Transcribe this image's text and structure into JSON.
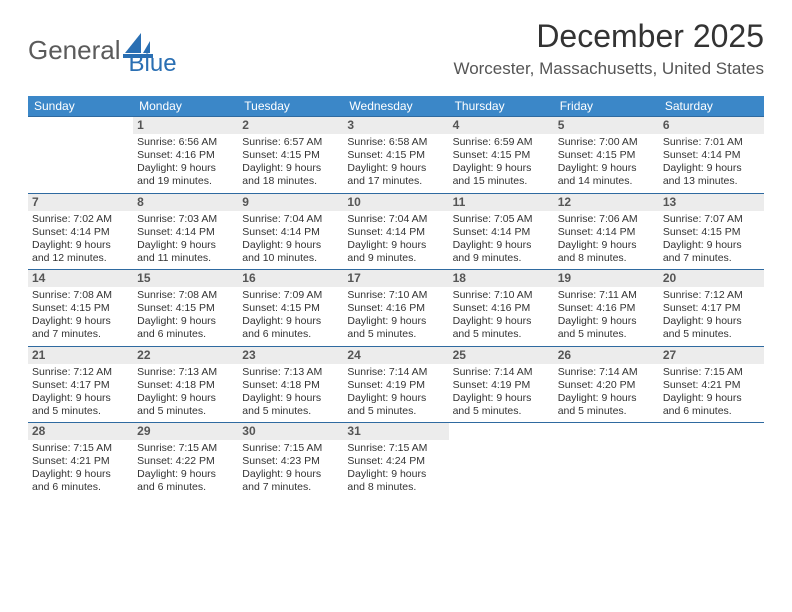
{
  "colors": {
    "header_bg": "#3b87c8",
    "rule": "#2f6aa0",
    "daynum_bg": "#ececec",
    "text": "#333333",
    "muted": "#555555",
    "logo_gray": "#5b5b5b",
    "logo_blue": "#2a6fb3",
    "bg": "#ffffff"
  },
  "logo": {
    "part1": "General",
    "part2": "Blue"
  },
  "header": {
    "title": "December 2025",
    "subtitle": "Worcester, Massachusetts, United States"
  },
  "dow": [
    "Sunday",
    "Monday",
    "Tuesday",
    "Wednesday",
    "Thursday",
    "Friday",
    "Saturday"
  ],
  "weeks": [
    [
      null,
      {
        "n": "1",
        "sr": "6:56 AM",
        "ss": "4:16 PM",
        "dl": "9 hours and 19 minutes."
      },
      {
        "n": "2",
        "sr": "6:57 AM",
        "ss": "4:15 PM",
        "dl": "9 hours and 18 minutes."
      },
      {
        "n": "3",
        "sr": "6:58 AM",
        "ss": "4:15 PM",
        "dl": "9 hours and 17 minutes."
      },
      {
        "n": "4",
        "sr": "6:59 AM",
        "ss": "4:15 PM",
        "dl": "9 hours and 15 minutes."
      },
      {
        "n": "5",
        "sr": "7:00 AM",
        "ss": "4:15 PM",
        "dl": "9 hours and 14 minutes."
      },
      {
        "n": "6",
        "sr": "7:01 AM",
        "ss": "4:14 PM",
        "dl": "9 hours and 13 minutes."
      }
    ],
    [
      {
        "n": "7",
        "sr": "7:02 AM",
        "ss": "4:14 PM",
        "dl": "9 hours and 12 minutes."
      },
      {
        "n": "8",
        "sr": "7:03 AM",
        "ss": "4:14 PM",
        "dl": "9 hours and 11 minutes."
      },
      {
        "n": "9",
        "sr": "7:04 AM",
        "ss": "4:14 PM",
        "dl": "9 hours and 10 minutes."
      },
      {
        "n": "10",
        "sr": "7:04 AM",
        "ss": "4:14 PM",
        "dl": "9 hours and 9 minutes."
      },
      {
        "n": "11",
        "sr": "7:05 AM",
        "ss": "4:14 PM",
        "dl": "9 hours and 9 minutes."
      },
      {
        "n": "12",
        "sr": "7:06 AM",
        "ss": "4:14 PM",
        "dl": "9 hours and 8 minutes."
      },
      {
        "n": "13",
        "sr": "7:07 AM",
        "ss": "4:15 PM",
        "dl": "9 hours and 7 minutes."
      }
    ],
    [
      {
        "n": "14",
        "sr": "7:08 AM",
        "ss": "4:15 PM",
        "dl": "9 hours and 7 minutes."
      },
      {
        "n": "15",
        "sr": "7:08 AM",
        "ss": "4:15 PM",
        "dl": "9 hours and 6 minutes."
      },
      {
        "n": "16",
        "sr": "7:09 AM",
        "ss": "4:15 PM",
        "dl": "9 hours and 6 minutes."
      },
      {
        "n": "17",
        "sr": "7:10 AM",
        "ss": "4:16 PM",
        "dl": "9 hours and 5 minutes."
      },
      {
        "n": "18",
        "sr": "7:10 AM",
        "ss": "4:16 PM",
        "dl": "9 hours and 5 minutes."
      },
      {
        "n": "19",
        "sr": "7:11 AM",
        "ss": "4:16 PM",
        "dl": "9 hours and 5 minutes."
      },
      {
        "n": "20",
        "sr": "7:12 AM",
        "ss": "4:17 PM",
        "dl": "9 hours and 5 minutes."
      }
    ],
    [
      {
        "n": "21",
        "sr": "7:12 AM",
        "ss": "4:17 PM",
        "dl": "9 hours and 5 minutes."
      },
      {
        "n": "22",
        "sr": "7:13 AM",
        "ss": "4:18 PM",
        "dl": "9 hours and 5 minutes."
      },
      {
        "n": "23",
        "sr": "7:13 AM",
        "ss": "4:18 PM",
        "dl": "9 hours and 5 minutes."
      },
      {
        "n": "24",
        "sr": "7:14 AM",
        "ss": "4:19 PM",
        "dl": "9 hours and 5 minutes."
      },
      {
        "n": "25",
        "sr": "7:14 AM",
        "ss": "4:19 PM",
        "dl": "9 hours and 5 minutes."
      },
      {
        "n": "26",
        "sr": "7:14 AM",
        "ss": "4:20 PM",
        "dl": "9 hours and 5 minutes."
      },
      {
        "n": "27",
        "sr": "7:15 AM",
        "ss": "4:21 PM",
        "dl": "9 hours and 6 minutes."
      }
    ],
    [
      {
        "n": "28",
        "sr": "7:15 AM",
        "ss": "4:21 PM",
        "dl": "9 hours and 6 minutes."
      },
      {
        "n": "29",
        "sr": "7:15 AM",
        "ss": "4:22 PM",
        "dl": "9 hours and 6 minutes."
      },
      {
        "n": "30",
        "sr": "7:15 AM",
        "ss": "4:23 PM",
        "dl": "9 hours and 7 minutes."
      },
      {
        "n": "31",
        "sr": "7:15 AM",
        "ss": "4:24 PM",
        "dl": "9 hours and 8 minutes."
      },
      null,
      null,
      null
    ]
  ],
  "labels": {
    "sunrise": "Sunrise: ",
    "sunset": "Sunset: ",
    "daylight": "Daylight: "
  }
}
